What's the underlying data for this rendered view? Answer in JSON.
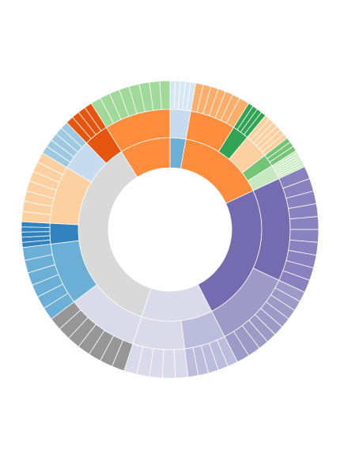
{
  "chart_data": {
    "type": "sunburst",
    "children": [
      {
        "color": "#6baed6",
        "value": 10,
        "children": [
          {
            "color": "#c6dbef",
            "leaf_color": "#d6e6f4",
            "value": 10,
            "values": [
              2,
              2,
              2,
              2,
              2
            ]
          }
        ]
      },
      {
        "color": "#fd8d3c",
        "value": 55,
        "children": [
          {
            "color": "#fd8d3c",
            "leaf_color": "#fdae6b",
            "value": 22,
            "values": [
              3,
              3,
              3,
              3,
              3,
              3,
              4
            ]
          },
          {
            "color": "#31a354",
            "leaf_color": "#31a354",
            "value": 8,
            "values": [
              2,
              2,
              2,
              2
            ]
          },
          {
            "color": "#fdd0a2",
            "leaf_color": "#fdd0a2",
            "value": 12,
            "values": [
              2,
              2,
              2,
              2,
              2,
              2
            ]
          },
          {
            "color": "#74c476",
            "leaf_color": "#74c476",
            "value": 6,
            "values": [
              2,
              2,
              2
            ]
          },
          {
            "color": "#c7e9c0",
            "leaf_color": "#c7e9c0",
            "value": 7,
            "values": [
              1,
              1,
              1,
              1,
              1,
              1,
              1
            ]
          }
        ]
      },
      {
        "color": "#756bb1",
        "value": 88,
        "children": [
          {
            "color": "#756bb1",
            "leaf_color": "#8a82bf",
            "value": 50,
            "values": [
              5,
              5,
              5,
              5,
              5,
              5,
              5,
              5,
              5,
              5
            ]
          },
          {
            "color": "#9e9ac8",
            "leaf_color": "#9e9ac8",
            "value": 38,
            "values": [
              4,
              4,
              4,
              4,
              4,
              4,
              4,
              5,
              5
            ]
          }
        ]
      },
      {
        "color": "#dadaeb",
        "value": 45,
        "children": [
          {
            "color": "#bcbddc",
            "leaf_color": "#bcbddc",
            "value": 20,
            "values": [
              4,
              4,
              4,
              4,
              4
            ]
          },
          {
            "color": "#dadaeb",
            "leaf_color": "#dadaeb",
            "value": 25,
            "values": [
              5,
              5,
              5,
              5,
              5
            ]
          }
        ]
      },
      {
        "color": "#d9d9d9",
        "value": 130,
        "children": [
          {
            "color": "#dadaeb",
            "leaf_color": "#969696",
            "value": 35,
            "values": [
              5,
              5,
              5,
              5,
              5,
              5,
              5
            ]
          },
          {
            "color": "#6baed6",
            "leaf_color": "#6baed6",
            "value": 30,
            "values": [
              5,
              5,
              5,
              5,
              5,
              5
            ]
          },
          {
            "color": "#3182bd",
            "leaf_color": "#3182bd",
            "value": 10,
            "values": [
              2,
              2,
              2,
              2,
              2
            ]
          },
          {
            "color": "#fdd0a2",
            "leaf_color": "#fdd0a2",
            "value": 28,
            "values": [
              4,
              4,
              4,
              4,
              4,
              4,
              4
            ]
          },
          {
            "color": "#c6dbef",
            "leaf_color": "#9ecae1",
            "value": 15,
            "values": [
              3,
              3,
              3,
              3,
              3
            ]
          },
          {
            "color": "#e6550d",
            "leaf_color": "#e6550d",
            "value": 12,
            "values": [
              3,
              3,
              3,
              3
            ]
          }
        ]
      },
      {
        "color": "#fd8d3c",
        "value": 32,
        "children": [
          {
            "color": "#fd8d3c",
            "leaf_color": "#a1d99b",
            "value": 32,
            "values": [
              4,
              4,
              4,
              4,
              4,
              4,
              4,
              4
            ]
          }
        ]
      }
    ]
  }
}
